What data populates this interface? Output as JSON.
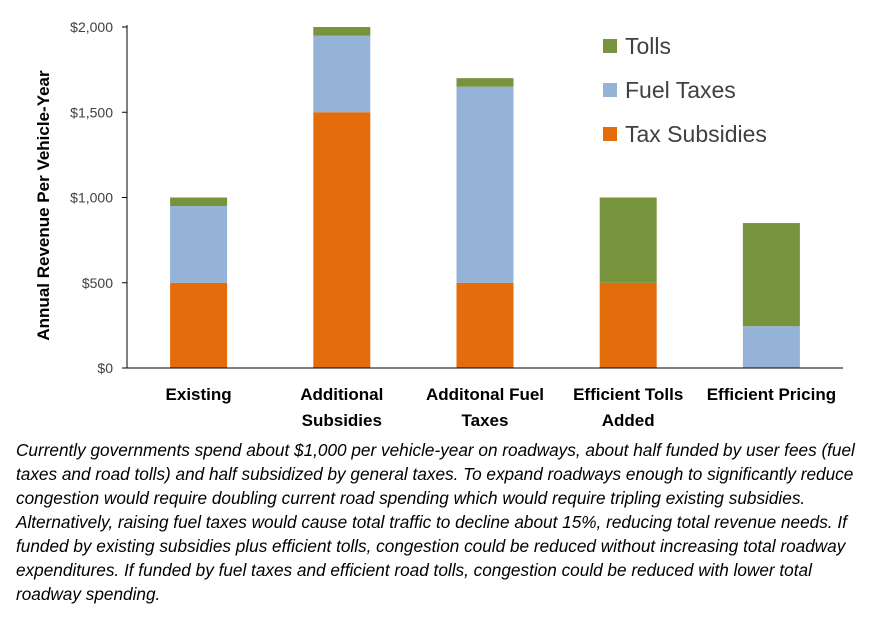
{
  "chart_data": {
    "type": "bar",
    "stacked": true,
    "ylabel": "Annual Revenue Per Vehicle-Year",
    "xlabel": "",
    "ylim": [
      0,
      2000
    ],
    "yticks": [
      0,
      500,
      1000,
      1500,
      2000
    ],
    "ytick_labels": [
      "$0",
      "$500",
      "$1,000",
      "$1,500",
      "$2,000"
    ],
    "grid": false,
    "legend_position": "top-right",
    "categories": [
      [
        "Existing"
      ],
      [
        "Additional",
        "Subsidies"
      ],
      [
        "Additonal Fuel",
        "Taxes"
      ],
      [
        "Efficient Tolls",
        "Added"
      ],
      [
        "Efficient Pricing"
      ]
    ],
    "series": [
      {
        "name": "Tax Subsidies",
        "color": "#E46C0A",
        "values": [
          500,
          1500,
          500,
          500,
          0
        ]
      },
      {
        "name": "Fuel Taxes",
        "color": "#95B3D7",
        "values": [
          450,
          450,
          1150,
          0,
          245
        ]
      },
      {
        "name": "Tolls",
        "color": "#77933C",
        "values": [
          50,
          50,
          50,
          500,
          605
        ]
      }
    ],
    "legend_order": [
      "Tolls",
      "Fuel Taxes",
      "Tax Subsidies"
    ]
  },
  "caption": "Currently governments spend about $1,000 per vehicle-year on roadways, about half funded by user fees (fuel taxes and road tolls) and half subsidized by general taxes. To expand roadways enough to significantly reduce congestion would require doubling current road spending which would require tripling existing subsidies. Alternatively, raising fuel taxes would cause total traffic to decline about 15%, reducing total revenue needs. If funded by existing subsidies plus efficient tolls, congestion could be reduced without increasing total roadway expenditures. If funded by fuel taxes and efficient road tolls, congestion could be reduced with lower total roadway spending."
}
